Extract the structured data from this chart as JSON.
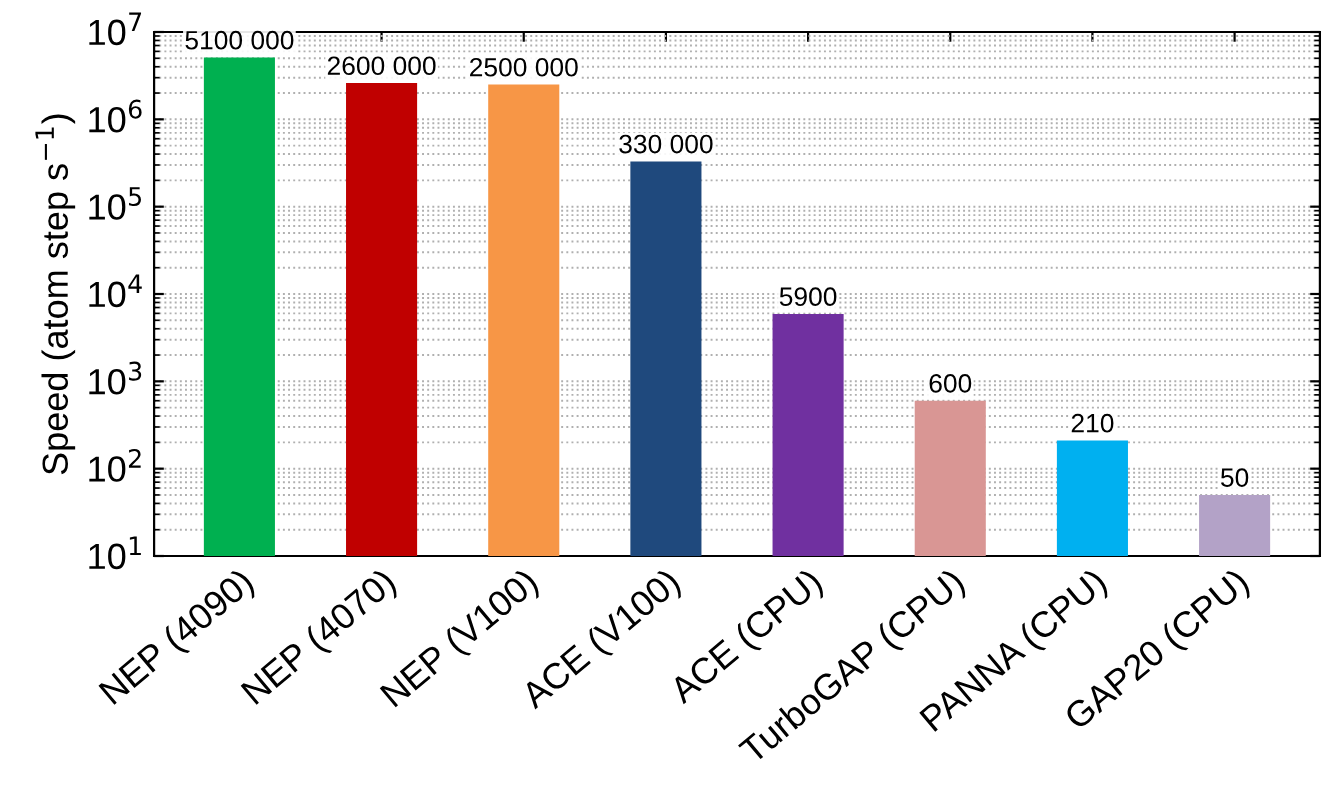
{
  "chart_data": {
    "type": "bar",
    "ylabel": "Speed (atom step s$^{−1}$)",
    "categories": [
      "NEP (4090)",
      "NEP (4070)",
      "NEP (V100)",
      "ACE (V100)",
      "ACE (CPU)",
      "TurboGAP (CPU)",
      "PANNA (CPU)",
      "GAP20 (CPU)"
    ],
    "values": [
      5100000,
      2600000,
      2500000,
      330000,
      5900,
      600,
      210,
      50
    ],
    "value_labels": [
      "5100 000",
      "2600 000",
      "2500 000",
      "330 000",
      "5900",
      "600",
      "210",
      "50"
    ],
    "colors": [
      "#00b050",
      "#c00000",
      "#f79646",
      "#1f497d",
      "#7030a0",
      "#d99694",
      "#00b0f0",
      "#b3a2c7"
    ],
    "log": "y",
    "ylim": [
      10,
      10000000
    ],
    "yticks": [
      {
        "value": 10,
        "label": "10$^{1}$"
      },
      {
        "value": 100,
        "label": "10$^{2}$"
      },
      {
        "value": 1000,
        "label": "10$^{3}$"
      },
      {
        "value": 10000,
        "label": "10$^{4}$"
      },
      {
        "value": 100000,
        "label": "10$^{5}$"
      },
      {
        "value": 1000000,
        "label": "10$^{6}$"
      },
      {
        "value": 10000000,
        "label": "10$^{7}$"
      }
    ],
    "grid": "y"
  }
}
